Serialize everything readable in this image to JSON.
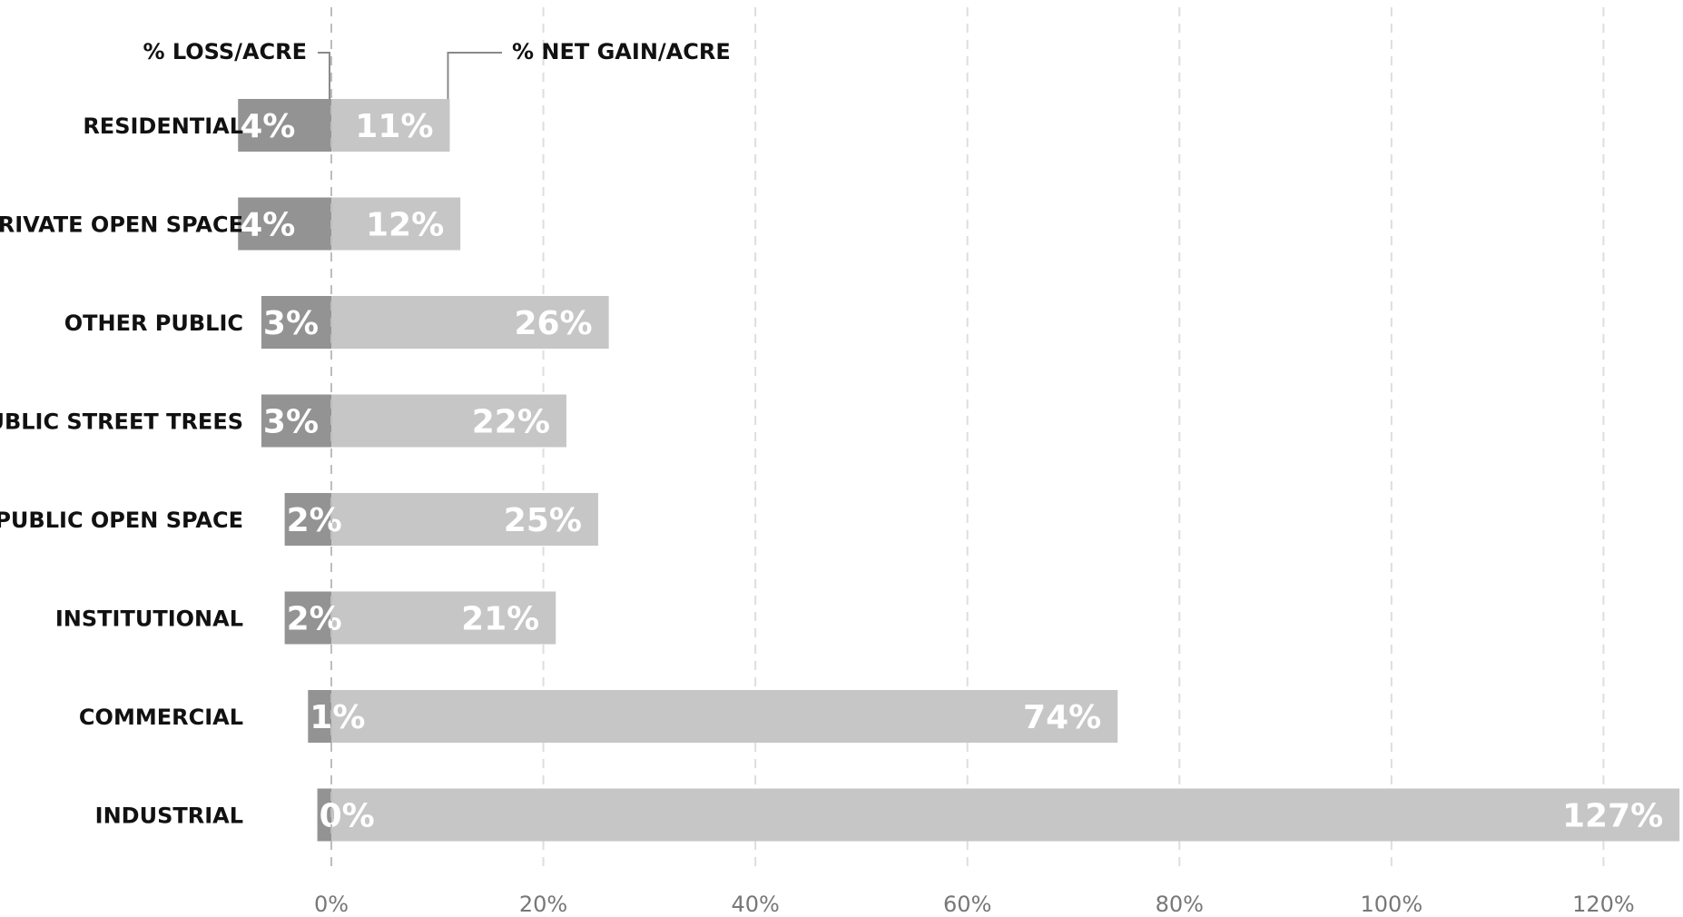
{
  "chart_data": {
    "type": "bar",
    "orientation": "horizontal",
    "stacked": "diverging",
    "title": "",
    "xlabel": "",
    "ylabel": "",
    "categories": [
      "RESIDENTIAL",
      "PRIVATE OPEN SPACE",
      "OTHER PUBLIC",
      "PUBLIC STREET TREES",
      "PUBLIC OPEN SPACE",
      "INSTITUTIONAL",
      "COMMERCIAL",
      "INDUSTRIAL"
    ],
    "series": [
      {
        "name": "% LOSS/ACRE",
        "color": "#939393",
        "values": [
          4,
          4,
          3,
          3,
          2,
          2,
          1,
          0
        ],
        "labels": [
          "4%",
          "4%",
          "3%",
          "3%",
          "2%",
          "2%",
          "1%",
          "0%"
        ]
      },
      {
        "name": "% NET GAIN/ACRE",
        "color": "#c6c6c6",
        "values": [
          11,
          12,
          26,
          22,
          25,
          21,
          74,
          127
        ],
        "labels": [
          "11%",
          "12%",
          "26%",
          "22%",
          "25%",
          "21%",
          "74%",
          "127%"
        ]
      }
    ],
    "xlim": [
      -7.5,
      127.5
    ],
    "xticks": [
      0,
      20,
      40,
      60,
      80,
      100,
      120
    ],
    "xtick_labels": [
      "0%",
      "20%",
      "40%",
      "60%",
      "80%",
      "100%",
      "120%"
    ],
    "grid": "vertical-dashed",
    "legend": "top-left-callouts",
    "gridline_color": "#dedede",
    "label_color": "#111111",
    "tick_color": "#777777"
  }
}
